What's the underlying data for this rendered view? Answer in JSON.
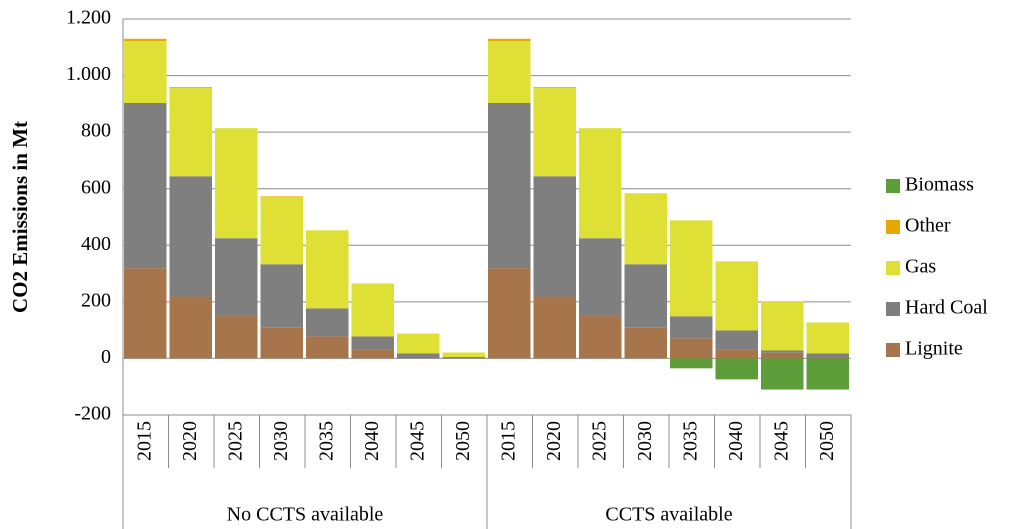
{
  "chart_data": {
    "type": "bar",
    "stacked": true,
    "y_label": "CO2 Emissions in Mt",
    "categories": [
      "2015",
      "2020",
      "2025",
      "2030",
      "2035",
      "2040",
      "2045",
      "2050",
      "2015",
      "2020",
      "2025",
      "2030",
      "2035",
      "2040",
      "2045",
      "2050"
    ],
    "groups": [
      "No CCTS available",
      "CCTS available"
    ],
    "series": [
      {
        "name": "Lignite",
        "color": "#a6754b",
        "values": [
          319,
          219,
          152,
          110,
          78,
          32,
          1,
          0,
          319,
          219,
          152,
          110,
          71,
          32,
          20,
          5
        ]
      },
      {
        "name": "Hard Coal",
        "color": "#7f7f7f",
        "values": [
          584,
          425,
          273,
          223,
          99,
          46,
          17,
          5,
          584,
          425,
          273,
          223,
          78,
          67,
          8,
          13
        ]
      },
      {
        "name": "Gas",
        "color": "#dfe036",
        "values": [
          219,
          312,
          389,
          237,
          276,
          187,
          70,
          16,
          219,
          312,
          389,
          251,
          339,
          244,
          174,
          109
        ]
      },
      {
        "name": "Other",
        "color": "#e6a800",
        "values": [
          8,
          3,
          0,
          3,
          0,
          0,
          0,
          0,
          8,
          3,
          0,
          0,
          0,
          0,
          0,
          0
        ]
      },
      {
        "name": "Biomass",
        "color": "#5e9e3a",
        "values": [
          0,
          0,
          0,
          0,
          0,
          0,
          0,
          0,
          0,
          0,
          0,
          0,
          -35,
          -74,
          -110,
          -110
        ]
      }
    ],
    "ylim": [
      -200,
      1200
    ],
    "yticks": [
      -200,
      0,
      200,
      400,
      600,
      800,
      {
        "value": 1000,
        "label": "1.000"
      },
      {
        "value": 1200,
        "label": "1.200"
      }
    ],
    "grid": true,
    "legend": "right"
  }
}
